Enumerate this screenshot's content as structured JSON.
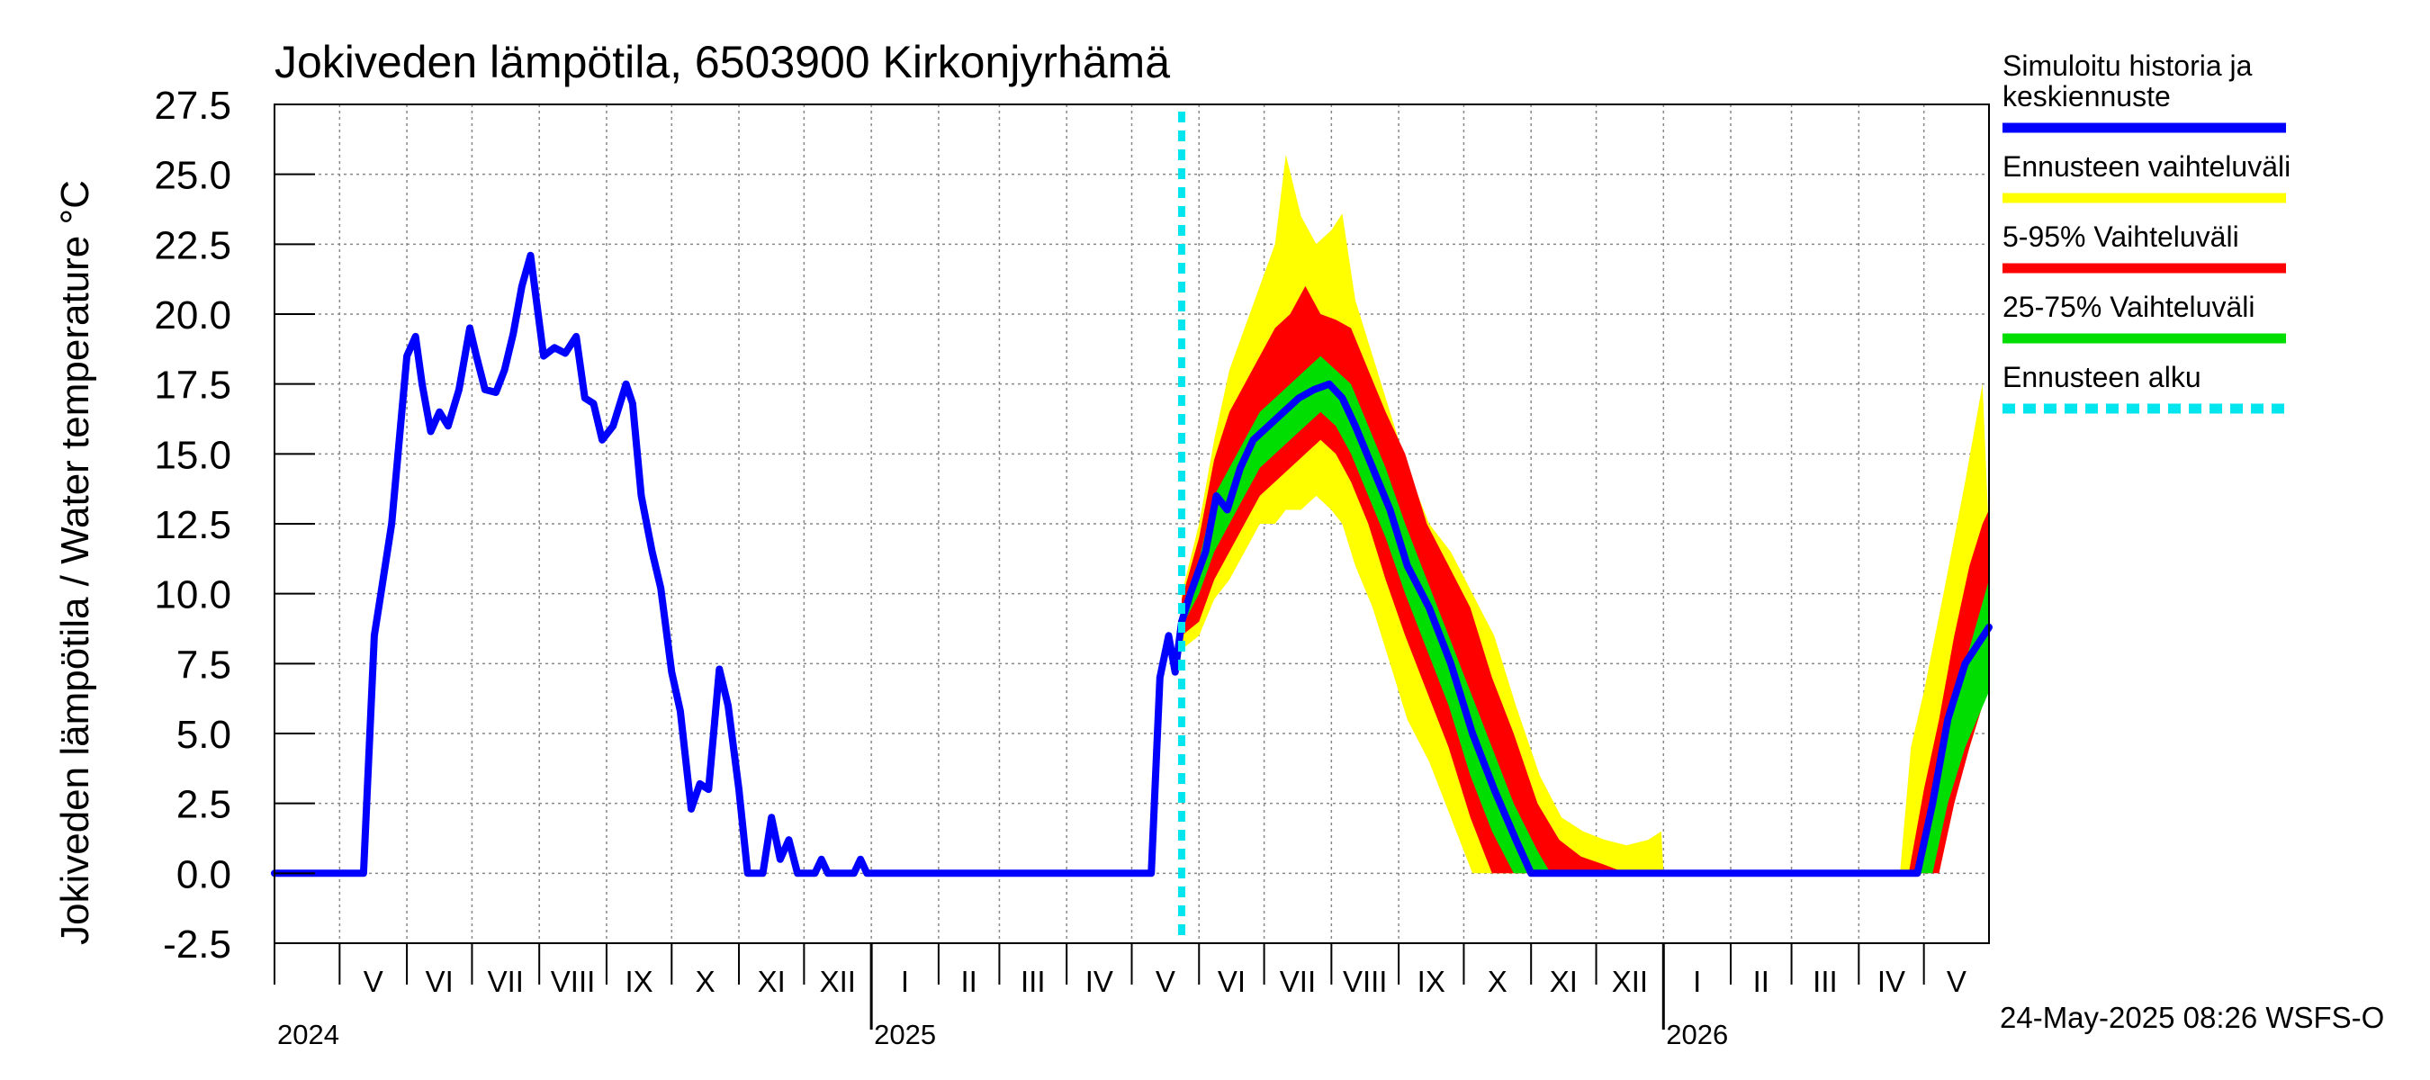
{
  "chart_data": {
    "type": "area",
    "title": "Jokiveden lämpötila, 6503900 Kirkonjyrhämä",
    "ylabel": "Jokiveden lämpötila / Water temperature   °C",
    "xlabel": "",
    "ylim": [
      -2.5,
      27.5
    ],
    "yticks": [
      "27.5",
      "25.0",
      "22.5",
      "20.0",
      "17.5",
      "15.0",
      "12.5",
      "10.0",
      "7.5",
      "5.0",
      "2.5",
      "0.0",
      "-2.5"
    ],
    "x_range": [
      "2024-04-01",
      "2026-05-31"
    ],
    "grid": true,
    "legend_position": "right",
    "month_labels": [
      {
        "label": "V",
        "date": "2024-05-01"
      },
      {
        "label": "VI",
        "date": "2024-06-01"
      },
      {
        "label": "VII",
        "date": "2024-07-01"
      },
      {
        "label": "VIII",
        "date": "2024-08-01"
      },
      {
        "label": "IX",
        "date": "2024-09-01"
      },
      {
        "label": "X",
        "date": "2024-10-01"
      },
      {
        "label": "XI",
        "date": "2024-11-01"
      },
      {
        "label": "XII",
        "date": "2024-12-01"
      },
      {
        "label": "I",
        "date": "2025-01-01"
      },
      {
        "label": "II",
        "date": "2025-02-01"
      },
      {
        "label": "III",
        "date": "2025-03-01"
      },
      {
        "label": "IV",
        "date": "2025-04-01"
      },
      {
        "label": "V",
        "date": "2025-05-01"
      },
      {
        "label": "VI",
        "date": "2025-06-01"
      },
      {
        "label": "VII",
        "date": "2025-07-01"
      },
      {
        "label": "VIII",
        "date": "2025-08-01"
      },
      {
        "label": "IX",
        "date": "2025-09-01"
      },
      {
        "label": "X",
        "date": "2025-10-01"
      },
      {
        "label": "XI",
        "date": "2025-11-01"
      },
      {
        "label": "XII",
        "date": "2025-12-01"
      },
      {
        "label": "I",
        "date": "2026-01-01"
      },
      {
        "label": "II",
        "date": "2026-02-01"
      },
      {
        "label": "III",
        "date": "2026-03-01"
      },
      {
        "label": "IV",
        "date": "2026-04-01"
      },
      {
        "label": "V",
        "date": "2026-05-01"
      }
    ],
    "year_labels": [
      {
        "label": "2024",
        "date": "2024-04-01"
      },
      {
        "label": "2025",
        "date": "2025-01-01"
      },
      {
        "label": "2026",
        "date": "2026-01-01"
      }
    ],
    "forecast_start": "2025-05-24",
    "legend": [
      {
        "label": "Simuloitu historia ja keskiennuste",
        "color": "#0000ff",
        "style": "solid"
      },
      {
        "label": "Ennusteen vaihteluväli",
        "color": "#ffff00",
        "style": "solid"
      },
      {
        "label": "5-95% Vaihteluväli",
        "color": "#ff0000",
        "style": "solid"
      },
      {
        "label": "25-75% Vaihteluväli",
        "color": "#00dd00",
        "style": "solid"
      },
      {
        "label": "Ennusteen alku",
        "color": "#00e5ee",
        "style": "dashed"
      }
    ],
    "series": [
      {
        "name": "Simuloitu historia ja keskiennuste",
        "color": "#0000ff",
        "points": [
          [
            "2024-04-01",
            0.0
          ],
          [
            "2024-05-12",
            0.0
          ],
          [
            "2024-05-17",
            8.5
          ],
          [
            "2024-05-20",
            10.0
          ],
          [
            "2024-05-25",
            12.5
          ],
          [
            "2024-06-01",
            18.5
          ],
          [
            "2024-06-05",
            19.2
          ],
          [
            "2024-06-08",
            17.5
          ],
          [
            "2024-06-12",
            15.8
          ],
          [
            "2024-06-16",
            16.5
          ],
          [
            "2024-06-20",
            16.0
          ],
          [
            "2024-06-25",
            17.3
          ],
          [
            "2024-06-30",
            19.5
          ],
          [
            "2024-07-03",
            18.5
          ],
          [
            "2024-07-07",
            17.3
          ],
          [
            "2024-07-12",
            17.2
          ],
          [
            "2024-07-16",
            18.0
          ],
          [
            "2024-07-20",
            19.3
          ],
          [
            "2024-07-24",
            21.0
          ],
          [
            "2024-07-28",
            22.1
          ],
          [
            "2024-08-03",
            18.5
          ],
          [
            "2024-08-08",
            18.8
          ],
          [
            "2024-08-13",
            18.6
          ],
          [
            "2024-08-18",
            19.2
          ],
          [
            "2024-08-22",
            17.0
          ],
          [
            "2024-08-26",
            16.8
          ],
          [
            "2024-08-30",
            15.5
          ],
          [
            "2024-09-04",
            16.0
          ],
          [
            "2024-09-10",
            17.5
          ],
          [
            "2024-09-13",
            16.8
          ],
          [
            "2024-09-17",
            13.5
          ],
          [
            "2024-09-22",
            11.5
          ],
          [
            "2024-09-26",
            10.2
          ],
          [
            "2024-10-01",
            7.2
          ],
          [
            "2024-10-05",
            5.8
          ],
          [
            "2024-10-10",
            2.3
          ],
          [
            "2024-10-14",
            3.2
          ],
          [
            "2024-10-18",
            3.0
          ],
          [
            "2024-10-23",
            7.3
          ],
          [
            "2024-10-27",
            6.0
          ],
          [
            "2024-11-01",
            3.0
          ],
          [
            "2024-11-05",
            0.0
          ],
          [
            "2024-11-12",
            0.0
          ],
          [
            "2024-11-16",
            2.0
          ],
          [
            "2024-11-20",
            0.5
          ],
          [
            "2024-11-24",
            1.2
          ],
          [
            "2024-11-28",
            0.0
          ],
          [
            "2024-12-06",
            0.0
          ],
          [
            "2024-12-09",
            0.5
          ],
          [
            "2024-12-12",
            0.0
          ],
          [
            "2024-12-24",
            0.0
          ],
          [
            "2024-12-27",
            0.5
          ],
          [
            "2024-12-30",
            0.0
          ],
          [
            "2025-05-10",
            0.0
          ],
          [
            "2025-05-14",
            7.0
          ],
          [
            "2025-05-18",
            8.5
          ],
          [
            "2025-05-21",
            7.2
          ],
          [
            "2025-05-24",
            9.0
          ],
          [
            "2025-05-28",
            10.0
          ],
          [
            "2025-06-04",
            11.5
          ],
          [
            "2025-06-09",
            13.5
          ],
          [
            "2025-06-14",
            13.0
          ],
          [
            "2025-06-20",
            14.5
          ],
          [
            "2025-06-26",
            15.5
          ],
          [
            "2025-07-03",
            16.0
          ],
          [
            "2025-07-10",
            16.5
          ],
          [
            "2025-07-17",
            17.0
          ],
          [
            "2025-07-24",
            17.3
          ],
          [
            "2025-07-31",
            17.5
          ],
          [
            "2025-08-06",
            17.0
          ],
          [
            "2025-08-12",
            16.0
          ],
          [
            "2025-08-20",
            14.5
          ],
          [
            "2025-08-28",
            13.0
          ],
          [
            "2025-09-05",
            11.0
          ],
          [
            "2025-09-15",
            9.5
          ],
          [
            "2025-09-25",
            7.5
          ],
          [
            "2025-10-05",
            5.0
          ],
          [
            "2025-10-15",
            3.0
          ],
          [
            "2025-10-25",
            1.2
          ],
          [
            "2025-11-01",
            0.0
          ],
          [
            "2026-04-28",
            0.0
          ],
          [
            "2026-05-05",
            2.5
          ],
          [
            "2026-05-12",
            5.5
          ],
          [
            "2026-05-20",
            7.5
          ],
          [
            "2026-05-31",
            8.8
          ]
        ]
      },
      {
        "name": "Ennusteen vaihteluväli",
        "color": "#ffff00",
        "points": [
          [
            "2025-05-24",
            8.0,
            10.0
          ],
          [
            "2025-06-01",
            8.5,
            12.5
          ],
          [
            "2025-06-08",
            9.8,
            15.5
          ],
          [
            "2025-06-15",
            10.5,
            18.0
          ],
          [
            "2025-06-22",
            11.5,
            19.5
          ],
          [
            "2025-06-29",
            12.5,
            21.0
          ],
          [
            "2025-07-06",
            12.5,
            22.5
          ],
          [
            "2025-07-11",
            13.0,
            25.7
          ],
          [
            "2025-07-18",
            13.0,
            23.5
          ],
          [
            "2025-07-25",
            13.5,
            22.5
          ],
          [
            "2025-08-01",
            13.0,
            23.0
          ],
          [
            "2025-08-06",
            12.5,
            23.6
          ],
          [
            "2025-08-12",
            11.0,
            20.5
          ],
          [
            "2025-08-20",
            9.5,
            18.5
          ],
          [
            "2025-08-28",
            7.5,
            16.5
          ],
          [
            "2025-09-05",
            5.5,
            14.5
          ],
          [
            "2025-09-15",
            4.0,
            12.5
          ],
          [
            "2025-09-25",
            2.0,
            11.5
          ],
          [
            "2025-10-05",
            0.0,
            10.0
          ],
          [
            "2025-10-15",
            0.0,
            8.5
          ],
          [
            "2025-10-25",
            0.0,
            6.0
          ],
          [
            "2025-11-05",
            0.0,
            3.5
          ],
          [
            "2025-11-15",
            0.0,
            2.0
          ],
          [
            "2025-11-25",
            0.0,
            1.5
          ],
          [
            "2025-12-05",
            0.0,
            1.2
          ],
          [
            "2025-12-15",
            0.0,
            1.0
          ],
          [
            "2025-12-25",
            0.0,
            1.2
          ],
          [
            "2025-12-31",
            0.0,
            1.5
          ],
          [
            "2026-01-01",
            0.0,
            0.0
          ],
          [
            "2026-04-20",
            0.0,
            0.0
          ],
          [
            "2026-04-25",
            0.0,
            4.5
          ],
          [
            "2026-05-01",
            0.0,
            6.5
          ],
          [
            "2026-05-10",
            1.5,
            10.0
          ],
          [
            "2026-05-20",
            4.0,
            14.0
          ],
          [
            "2026-05-28",
            6.0,
            17.5
          ],
          [
            "2026-05-31",
            7.0,
            12.0
          ]
        ]
      },
      {
        "name": "5-95% Vaihteluväli",
        "color": "#ff0000",
        "points": [
          [
            "2025-05-24",
            8.5,
            9.8
          ],
          [
            "2025-06-01",
            9.0,
            12.0
          ],
          [
            "2025-06-08",
            10.5,
            14.8
          ],
          [
            "2025-06-15",
            11.5,
            16.5
          ],
          [
            "2025-06-22",
            12.5,
            17.5
          ],
          [
            "2025-06-29",
            13.5,
            18.5
          ],
          [
            "2025-07-06",
            14.0,
            19.5
          ],
          [
            "2025-07-13",
            14.5,
            20.0
          ],
          [
            "2025-07-20",
            15.0,
            21.0
          ],
          [
            "2025-07-27",
            15.5,
            20.0
          ],
          [
            "2025-08-03",
            15.0,
            19.8
          ],
          [
            "2025-08-10",
            14.0,
            19.5
          ],
          [
            "2025-08-18",
            12.5,
            18.0
          ],
          [
            "2025-08-26",
            10.5,
            16.5
          ],
          [
            "2025-09-04",
            8.5,
            15.0
          ],
          [
            "2025-09-14",
            6.5,
            12.5
          ],
          [
            "2025-09-24",
            4.5,
            11.0
          ],
          [
            "2025-10-04",
            2.0,
            9.5
          ],
          [
            "2025-10-14",
            0.0,
            7.0
          ],
          [
            "2025-10-24",
            0.0,
            5.0
          ],
          [
            "2025-11-04",
            0.0,
            2.5
          ],
          [
            "2025-11-14",
            0.0,
            1.2
          ],
          [
            "2025-11-24",
            0.0,
            0.6
          ],
          [
            "2025-12-05",
            0.0,
            0.3
          ],
          [
            "2025-12-15",
            0.0,
            0.0
          ],
          [
            "2026-04-24",
            0.0,
            0.0
          ],
          [
            "2026-05-01",
            0.0,
            3.0
          ],
          [
            "2026-05-08",
            0.0,
            5.5
          ],
          [
            "2026-05-15",
            2.5,
            8.5
          ],
          [
            "2026-05-22",
            4.5,
            11.0
          ],
          [
            "2026-05-28",
            6.0,
            12.5
          ],
          [
            "2026-05-31",
            7.0,
            13.0
          ]
        ]
      },
      {
        "name": "25-75% Vaihteluväli",
        "color": "#00dd00",
        "points": [
          [
            "2025-05-24",
            8.8,
            9.4
          ],
          [
            "2025-06-01",
            10.0,
            11.2
          ],
          [
            "2025-06-08",
            11.5,
            13.5
          ],
          [
            "2025-06-15",
            12.5,
            14.5
          ],
          [
            "2025-06-22",
            13.5,
            15.5
          ],
          [
            "2025-06-29",
            14.5,
            16.5
          ],
          [
            "2025-07-06",
            15.0,
            17.0
          ],
          [
            "2025-07-13",
            15.5,
            17.5
          ],
          [
            "2025-07-20",
            16.0,
            18.0
          ],
          [
            "2025-07-27",
            16.5,
            18.5
          ],
          [
            "2025-08-03",
            16.0,
            18.0
          ],
          [
            "2025-08-10",
            15.0,
            17.5
          ],
          [
            "2025-08-18",
            13.5,
            16.0
          ],
          [
            "2025-08-26",
            12.0,
            14.5
          ],
          [
            "2025-09-04",
            10.0,
            12.5
          ],
          [
            "2025-09-14",
            8.0,
            10.5
          ],
          [
            "2025-09-24",
            6.0,
            8.5
          ],
          [
            "2025-10-04",
            3.5,
            6.5
          ],
          [
            "2025-10-14",
            1.5,
            4.5
          ],
          [
            "2025-10-24",
            0.0,
            2.5
          ],
          [
            "2025-11-04",
            0.0,
            0.8
          ],
          [
            "2025-11-10",
            0.0,
            0.0
          ],
          [
            "2026-04-28",
            0.0,
            0.0
          ],
          [
            "2026-05-05",
            0.0,
            2.0
          ],
          [
            "2026-05-12",
            2.5,
            5.5
          ],
          [
            "2026-05-20",
            4.5,
            7.5
          ],
          [
            "2026-05-31",
            6.5,
            10.5
          ]
        ]
      }
    ]
  },
  "footer": {
    "timestamp": "24-May-2025 08:26 WSFS-O"
  }
}
